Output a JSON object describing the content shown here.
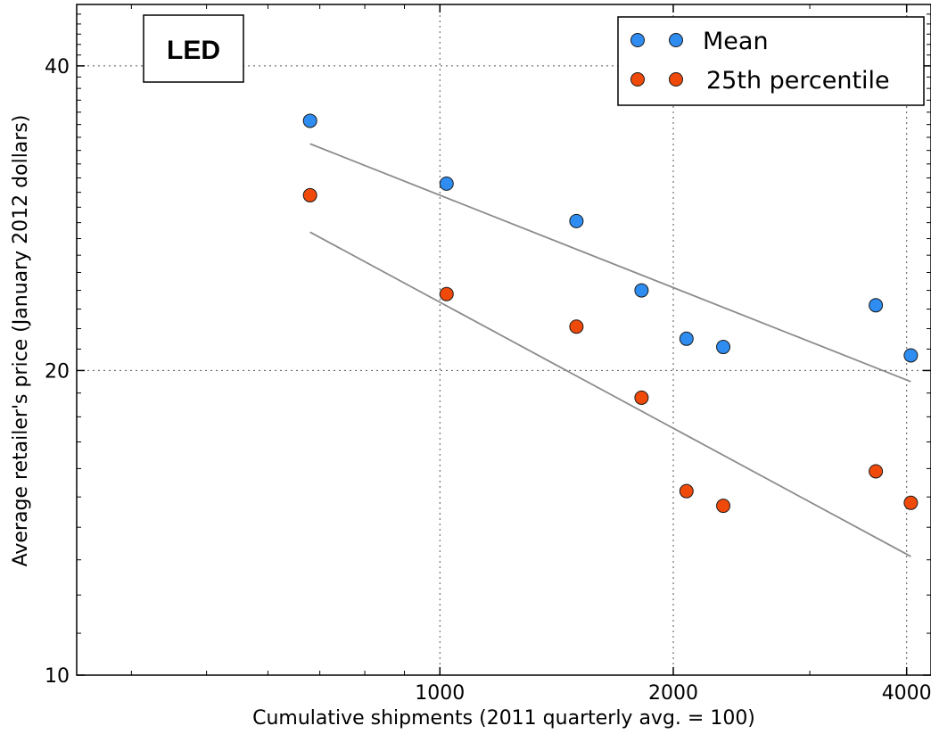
{
  "chart_data": {
    "type": "scatter",
    "tag": "LED",
    "xlabel": "Cumulative shipments (2011 quarterly avg. = 100)",
    "ylabel": "Average retailer's price (January 2012 dollars)",
    "xscale": "log",
    "yscale": "log",
    "xlim": [
      340,
      4300
    ],
    "ylim": [
      10,
      46
    ],
    "x_ticks": [
      {
        "value": 1000,
        "label": "1000"
      },
      {
        "value": 2000,
        "label": "2000"
      },
      {
        "value": 4000,
        "label": "4000"
      }
    ],
    "y_ticks": [
      {
        "value": 10,
        "label": "10"
      },
      {
        "value": 20,
        "label": "20"
      },
      {
        "value": 40,
        "label": "40"
      }
    ],
    "grid": true,
    "legend_position": "top-right",
    "series": [
      {
        "name": "Mean",
        "color": "#2f8cf0",
        "x": [
          680,
          1020,
          1500,
          1820,
          2080,
          2320,
          3650,
          4050
        ],
        "y": [
          35.3,
          30.6,
          28.1,
          24.0,
          21.5,
          21.1,
          23.2,
          20.7
        ],
        "fit": {
          "x": [
            680,
            4050
          ],
          "y": [
            33.5,
            19.5
          ]
        }
      },
      {
        "name": "25th percentile",
        "color": "#f04a0a",
        "x": [
          680,
          1020,
          1500,
          1820,
          2080,
          2320,
          3650,
          4050
        ],
        "y": [
          29.8,
          23.8,
          22.1,
          18.8,
          15.2,
          14.7,
          15.9,
          14.8
        ],
        "fit": {
          "x": [
            680,
            4050
          ],
          "y": [
            27.4,
            13.1
          ]
        }
      }
    ]
  }
}
